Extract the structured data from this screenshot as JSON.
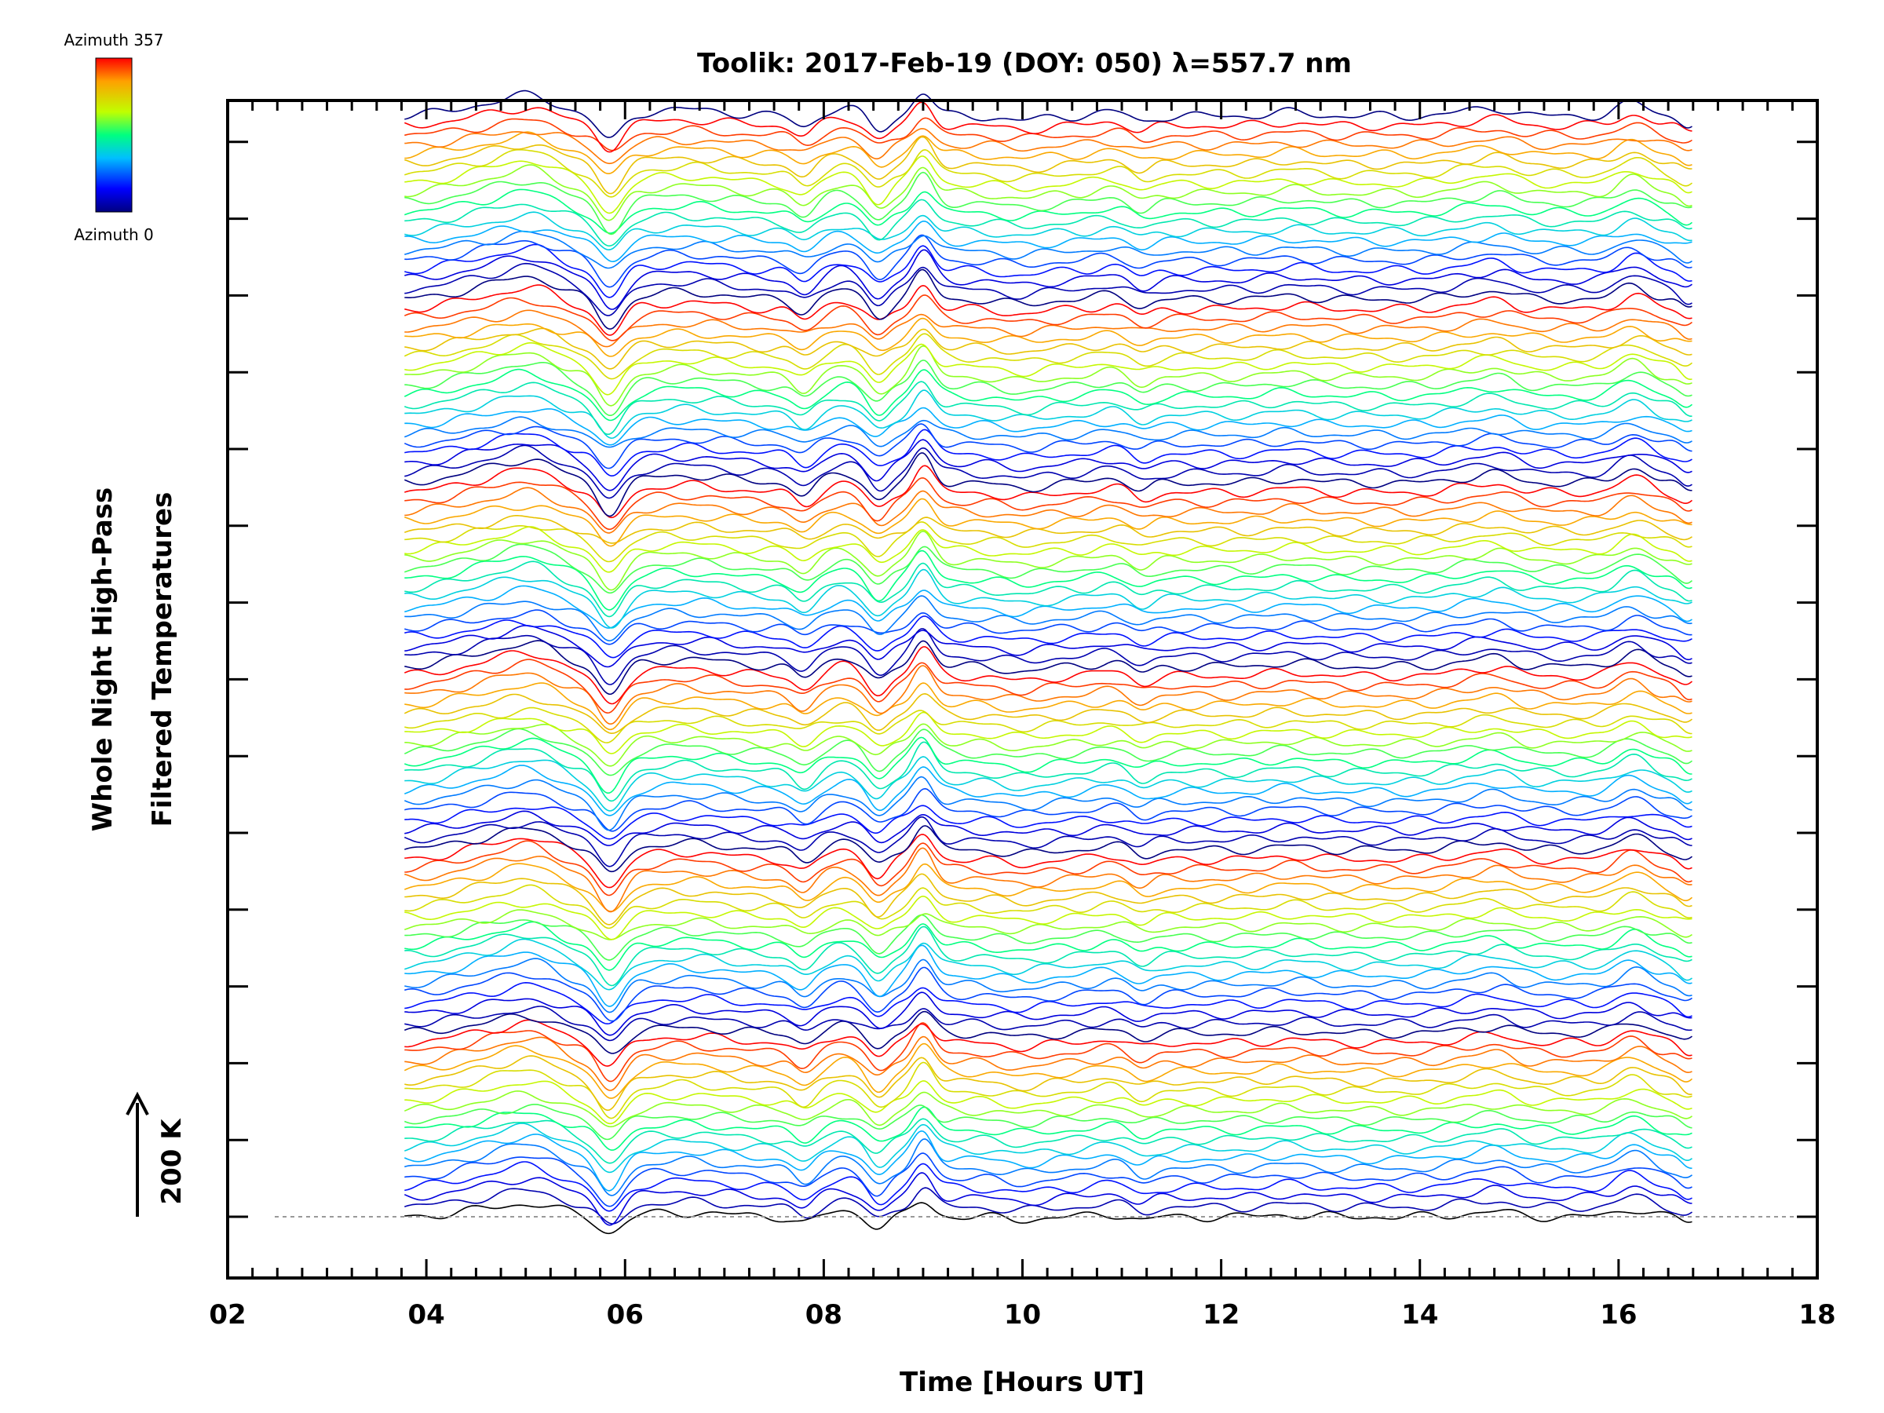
{
  "chart_data": {
    "type": "line",
    "title": "Toolik: 2017-Feb-19 (DOY: 050) λ=557.7 nm",
    "xlabel": "Time [Hours UT]",
    "ylabel_line1": "Whole Night High-Pass",
    "ylabel_line2": "Filtered Temperatures",
    "xlim": [
      2,
      18
    ],
    "x_tick_labels": [
      "02",
      "04",
      "06",
      "08",
      "10",
      "12",
      "14",
      "16",
      "18"
    ],
    "x_ticks": [
      2,
      4,
      6,
      8,
      10,
      12,
      14,
      16,
      18
    ],
    "data_time_range": [
      3.78,
      16.75
    ],
    "scale_bar_label": "200 K",
    "colorbar": {
      "top_label": "Azimuth  357",
      "bottom_label": "Azimuth  0",
      "colors": [
        "#000080",
        "#0000ff",
        "#00bfff",
        "#00ff80",
        "#c0ff00",
        "#ffa000",
        "#ff0000"
      ]
    },
    "series_count": 115,
    "azimuth_range": [
      0,
      357
    ],
    "events": [
      {
        "hour": 4.65,
        "amplitude": 25,
        "width": 0.35
      },
      {
        "hour": 5.1,
        "amplitude": 35,
        "width": 0.25
      },
      {
        "hour": 5.85,
        "amplitude": -60,
        "width": 0.12
      },
      {
        "hour": 6.6,
        "amplitude": 15,
        "width": 0.4
      },
      {
        "hour": 7.8,
        "amplitude": -25,
        "width": 0.1
      },
      {
        "hour": 8.2,
        "amplitude": 20,
        "width": 0.15
      },
      {
        "hour": 8.55,
        "amplitude": -35,
        "width": 0.1
      },
      {
        "hour": 9.0,
        "amplitude": 55,
        "width": 0.1
      },
      {
        "hour": 10.0,
        "amplitude": -10,
        "width": 0.2
      },
      {
        "hour": 10.9,
        "amplitude": 10,
        "width": 0.15
      },
      {
        "hour": 11.2,
        "amplitude": -15,
        "width": 0.1
      },
      {
        "hour": 12.7,
        "amplitude": 8,
        "width": 0.2
      },
      {
        "hour": 14.5,
        "amplitude": 10,
        "width": 0.2
      },
      {
        "hour": 14.8,
        "amplitude": 15,
        "width": 0.15
      },
      {
        "hour": 16.15,
        "amplitude": 30,
        "width": 0.15
      },
      {
        "hour": 16.7,
        "amplitude": -20,
        "width": 0.08
      }
    ]
  }
}
